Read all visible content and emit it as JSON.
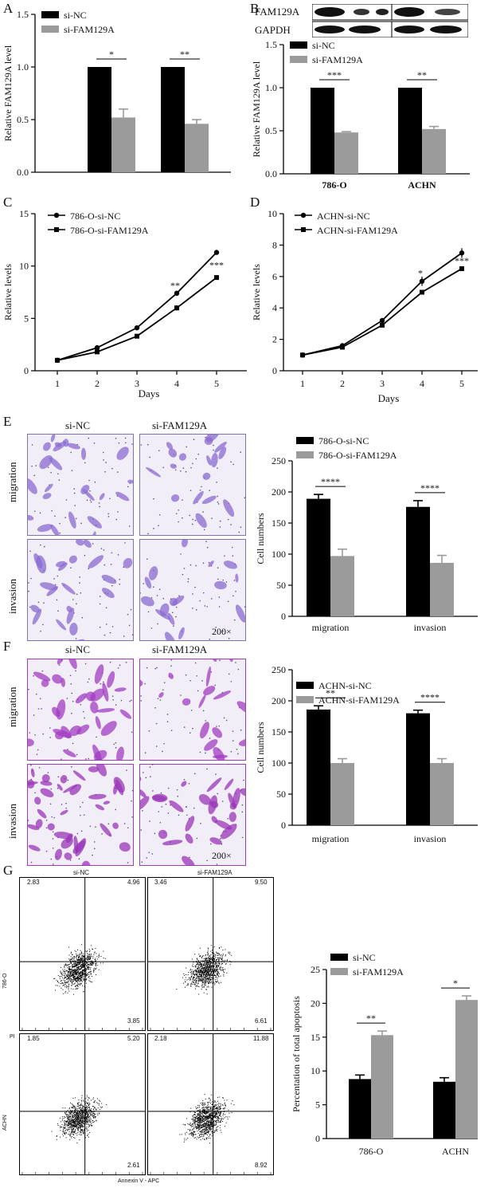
{
  "panel_letters": [
    "A",
    "B",
    "C",
    "D",
    "E",
    "F",
    "G"
  ],
  "panel_b": {
    "blot_labels": [
      "FAM129A",
      "GAPDH"
    ]
  },
  "panel_e": {
    "column_labels": [
      "si-NC",
      "si-FAM129A"
    ],
    "row_labels": [
      "migration",
      "invasion"
    ],
    "magnification": "200×"
  },
  "panel_f": {
    "column_labels": [
      "si-NC",
      "si-FAM129A"
    ],
    "row_labels": [
      "migration",
      "invasion"
    ],
    "magnification": "200×"
  },
  "panel_g_flow": {
    "column_labels": [
      "si-NC",
      "si-FAM129A"
    ],
    "row_labels": [
      "786-O",
      "ACHN"
    ],
    "y_axis_label": "PI",
    "x_axis_label": "Annexin V - APC",
    "quadrants": [
      {
        "ul": "2.83",
        "ur": "4.96",
        "lr": "3.85"
      },
      {
        "ul": "3.46",
        "ur": "9.50",
        "lr": "6.61"
      },
      {
        "ul": "1.85",
        "ur": "5.20",
        "lr": "2.61"
      },
      {
        "ul": "2.18",
        "ur": "11.88",
        "lr": "8.92"
      }
    ]
  },
  "chart_data": [
    {
      "panel": "A",
      "type": "bar",
      "categories": [
        "",
        ""
      ],
      "ylabel": "Relative FAM129A level",
      "ylim": [
        0,
        1.5
      ],
      "yticks": [
        0.0,
        0.5,
        1.0,
        1.5
      ],
      "series": [
        {
          "name": "si-NC",
          "values": [
            1.0,
            1.0
          ],
          "errors": [
            0,
            0
          ],
          "color": "#000000"
        },
        {
          "name": "si-FAM129A",
          "values": [
            0.52,
            0.46
          ],
          "errors": [
            0.08,
            0.04
          ],
          "color": "#9b9b9b"
        }
      ],
      "significance": [
        "*",
        "**"
      ],
      "legend": "top-left"
    },
    {
      "panel": "B",
      "type": "bar",
      "categories": [
        "786-O",
        "ACHN"
      ],
      "ylabel": "Relative FAM129A level",
      "ylim": [
        0,
        1.5
      ],
      "yticks": [
        0.0,
        0.5,
        1.0,
        1.5
      ],
      "series": [
        {
          "name": "si-NC",
          "values": [
            1.0,
            1.0
          ],
          "errors": [
            0,
            0
          ],
          "color": "#000000"
        },
        {
          "name": "si-FAM129A",
          "values": [
            0.48,
            0.52
          ],
          "errors": [
            0.01,
            0.03
          ],
          "color": "#9b9b9b"
        }
      ],
      "significance": [
        "***",
        "**"
      ],
      "legend": "top-left"
    },
    {
      "panel": "C",
      "type": "line",
      "x": [
        1,
        2,
        3,
        4,
        5
      ],
      "xlabel": "Days",
      "ylabel": "Relative levels",
      "ylim": [
        0,
        15
      ],
      "yticks": [
        0,
        5,
        10,
        15
      ],
      "series": [
        {
          "name": "786-O-si-NC",
          "values": [
            1.0,
            2.2,
            4.1,
            7.4,
            11.3
          ],
          "errors": [
            0.05,
            0.1,
            0.1,
            0.25,
            0.2
          ],
          "marker": "circle"
        },
        {
          "name": "786-O-si-FAM129A",
          "values": [
            1.0,
            1.8,
            3.3,
            6.0,
            8.9
          ],
          "errors": [
            0.05,
            0.1,
            0.1,
            0.25,
            0.2
          ],
          "marker": "square"
        }
      ],
      "annotations": [
        {
          "x": 4,
          "text": "**"
        },
        {
          "x": 5,
          "text": "***"
        }
      ],
      "legend": "top-left"
    },
    {
      "panel": "D",
      "type": "line",
      "x": [
        1,
        2,
        3,
        4,
        5
      ],
      "xlabel": "Days",
      "ylabel": "Relative levels",
      "ylim": [
        0,
        10
      ],
      "yticks": [
        0,
        2,
        4,
        6,
        8,
        10
      ],
      "series": [
        {
          "name": "ACHN-si-NC",
          "values": [
            1.0,
            1.6,
            3.2,
            5.7,
            7.5
          ],
          "errors": [
            0.05,
            0.08,
            0.15,
            0.3,
            0.3
          ],
          "marker": "circle"
        },
        {
          "name": "ACHN-si-FAM129A",
          "values": [
            1.0,
            1.5,
            2.9,
            5.0,
            6.5
          ],
          "errors": [
            0.05,
            0.08,
            0.12,
            0.15,
            0.15
          ],
          "marker": "square"
        }
      ],
      "annotations": [
        {
          "x": 4,
          "text": "*"
        },
        {
          "x": 5,
          "text": "***"
        }
      ],
      "legend": "top-left"
    },
    {
      "panel": "E",
      "type": "bar",
      "categories": [
        "migration",
        "invasion"
      ],
      "ylabel": "Cell numbers",
      "ylim": [
        0,
        250
      ],
      "yticks": [
        0,
        50,
        100,
        150,
        200,
        250
      ],
      "series": [
        {
          "name": "786-O-si-NC",
          "values": [
            189,
            176
          ],
          "errors": [
            7,
            10
          ],
          "color": "#000000"
        },
        {
          "name": "786-O-si-FAM129A",
          "values": [
            97,
            86
          ],
          "errors": [
            11,
            12
          ],
          "color": "#9b9b9b"
        }
      ],
      "significance": [
        "****",
        "****"
      ],
      "legend": "top-left"
    },
    {
      "panel": "F",
      "type": "bar",
      "categories": [
        "migration",
        "invasion"
      ],
      "ylabel": "Cell numbers",
      "ylim": [
        0,
        250
      ],
      "yticks": [
        0,
        50,
        100,
        150,
        200,
        250
      ],
      "series": [
        {
          "name": "ACHN-si-NC",
          "values": [
            186,
            180
          ],
          "errors": [
            6,
            5
          ],
          "color": "#000000"
        },
        {
          "name": "ACHN-si-FAM129A",
          "values": [
            100,
            100
          ],
          "errors": [
            7,
            7
          ],
          "color": "#9b9b9b"
        }
      ],
      "significance": [
        "**",
        "****"
      ],
      "legend": "top-left"
    },
    {
      "panel": "G",
      "type": "bar",
      "categories": [
        "786-O",
        "ACHN"
      ],
      "ylabel": "Percentation of total apoptosis",
      "ylim": [
        0,
        25
      ],
      "yticks": [
        0,
        5,
        10,
        15,
        20,
        25
      ],
      "series": [
        {
          "name": "si-NC",
          "values": [
            8.8,
            8.4
          ],
          "errors": [
            0.6,
            0.6
          ],
          "color": "#000000"
        },
        {
          "name": "si-FAM129A",
          "values": [
            15.3,
            20.5
          ],
          "errors": [
            0.6,
            0.6
          ],
          "color": "#9b9b9b"
        }
      ],
      "significance": [
        "**",
        "*"
      ],
      "legend": "top-left"
    }
  ]
}
